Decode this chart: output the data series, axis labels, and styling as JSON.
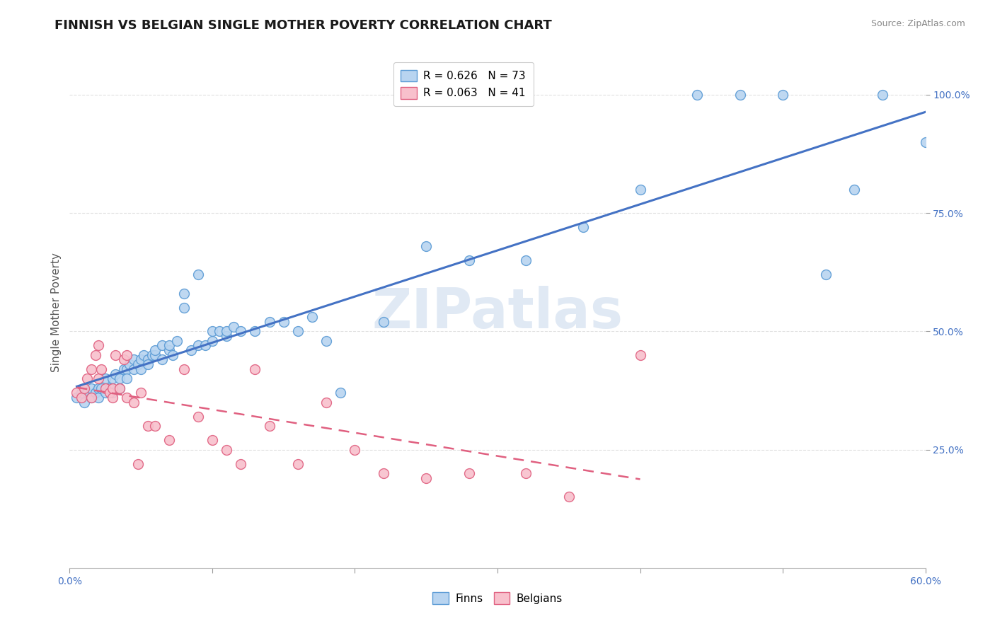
{
  "title": "FINNISH VS BELGIAN SINGLE MOTHER POVERTY CORRELATION CHART",
  "source": "Source: ZipAtlas.com",
  "ylabel": "Single Mother Poverty",
  "xlim": [
    0.0,
    0.6
  ],
  "ylim": [
    0.0,
    1.08
  ],
  "xticks": [
    0.0,
    0.1,
    0.2,
    0.3,
    0.4,
    0.5,
    0.6
  ],
  "xticklabels": [
    "0.0%",
    "",
    "",
    "",
    "",
    "",
    "60.0%"
  ],
  "ytick_positions": [
    0.25,
    0.5,
    0.75,
    1.0
  ],
  "ytick_labels": [
    "25.0%",
    "50.0%",
    "75.0%",
    "100.0%"
  ],
  "watermark": "ZIPatlas",
  "finn_color": "#b8d4f0",
  "finn_edge_color": "#5b9bd5",
  "belgian_color": "#f8c0cc",
  "belgian_edge_color": "#e06080",
  "finn_R": 0.626,
  "finn_N": 73,
  "belgian_R": 0.063,
  "belgian_N": 41,
  "finn_line_color": "#4472c4",
  "belgian_line_color": "#e06080",
  "finns_x": [
    0.005,
    0.008,
    0.01,
    0.01,
    0.012,
    0.015,
    0.015,
    0.018,
    0.02,
    0.02,
    0.022,
    0.025,
    0.025,
    0.028,
    0.03,
    0.03,
    0.032,
    0.035,
    0.035,
    0.038,
    0.04,
    0.04,
    0.042,
    0.045,
    0.045,
    0.048,
    0.05,
    0.05,
    0.052,
    0.055,
    0.055,
    0.058,
    0.06,
    0.06,
    0.065,
    0.065,
    0.07,
    0.07,
    0.072,
    0.075,
    0.08,
    0.08,
    0.085,
    0.09,
    0.09,
    0.095,
    0.1,
    0.1,
    0.105,
    0.11,
    0.11,
    0.115,
    0.12,
    0.13,
    0.14,
    0.15,
    0.16,
    0.17,
    0.18,
    0.19,
    0.22,
    0.25,
    0.28,
    0.32,
    0.36,
    0.4,
    0.44,
    0.47,
    0.5,
    0.53,
    0.55,
    0.57,
    0.6
  ],
  "finns_y": [
    0.36,
    0.37,
    0.38,
    0.35,
    0.37,
    0.36,
    0.38,
    0.37,
    0.38,
    0.36,
    0.38,
    0.37,
    0.4,
    0.38,
    0.4,
    0.37,
    0.41,
    0.4,
    0.38,
    0.42,
    0.42,
    0.4,
    0.43,
    0.44,
    0.42,
    0.43,
    0.44,
    0.42,
    0.45,
    0.44,
    0.43,
    0.45,
    0.45,
    0.46,
    0.47,
    0.44,
    0.46,
    0.47,
    0.45,
    0.48,
    0.55,
    0.58,
    0.46,
    0.62,
    0.47,
    0.47,
    0.48,
    0.5,
    0.5,
    0.49,
    0.5,
    0.51,
    0.5,
    0.5,
    0.52,
    0.52,
    0.5,
    0.53,
    0.48,
    0.37,
    0.52,
    0.68,
    0.65,
    0.65,
    0.72,
    0.8,
    1.0,
    1.0,
    1.0,
    0.62,
    0.8,
    1.0,
    0.9
  ],
  "belgians_x": [
    0.005,
    0.008,
    0.01,
    0.012,
    0.015,
    0.015,
    0.018,
    0.02,
    0.02,
    0.022,
    0.025,
    0.028,
    0.03,
    0.03,
    0.032,
    0.035,
    0.038,
    0.04,
    0.04,
    0.045,
    0.048,
    0.05,
    0.055,
    0.06,
    0.07,
    0.08,
    0.09,
    0.1,
    0.11,
    0.12,
    0.13,
    0.14,
    0.16,
    0.18,
    0.2,
    0.22,
    0.25,
    0.28,
    0.32,
    0.35,
    0.4
  ],
  "belgians_y": [
    0.37,
    0.36,
    0.38,
    0.4,
    0.42,
    0.36,
    0.45,
    0.4,
    0.47,
    0.42,
    0.38,
    0.37,
    0.36,
    0.38,
    0.45,
    0.38,
    0.44,
    0.45,
    0.36,
    0.35,
    0.22,
    0.37,
    0.3,
    0.3,
    0.27,
    0.42,
    0.32,
    0.27,
    0.25,
    0.22,
    0.42,
    0.3,
    0.22,
    0.35,
    0.25,
    0.2,
    0.19,
    0.2,
    0.2,
    0.15,
    0.45
  ],
  "background_color": "#ffffff",
  "grid_color": "#e0e0e0",
  "title_fontsize": 13,
  "axis_label_fontsize": 11,
  "tick_fontsize": 10,
  "marker_size": 100
}
